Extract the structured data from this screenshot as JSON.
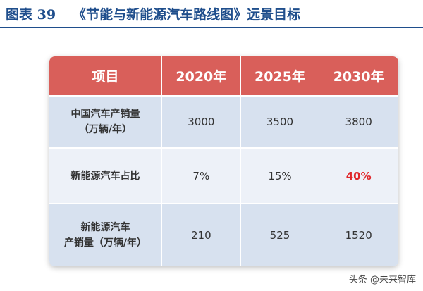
{
  "header": {
    "label": "图表 39",
    "title": "《节能与新能源汽车路线图》远景目标"
  },
  "table": {
    "columns": [
      "项目",
      "2020年",
      "2025年",
      "2030年"
    ],
    "rows": [
      [
        [
          "中国汽车产销量",
          "（万辆/年）"
        ],
        "3000",
        "3500",
        "3800"
      ],
      [
        [
          "新能源汽车占比"
        ],
        "7%",
        "15%",
        "40%"
      ],
      [
        [
          "新能源汽车",
          "产销量（万辆/年）"
        ],
        "210",
        "525",
        "1520"
      ]
    ]
  },
  "watermark": "头条 @未来智库"
}
